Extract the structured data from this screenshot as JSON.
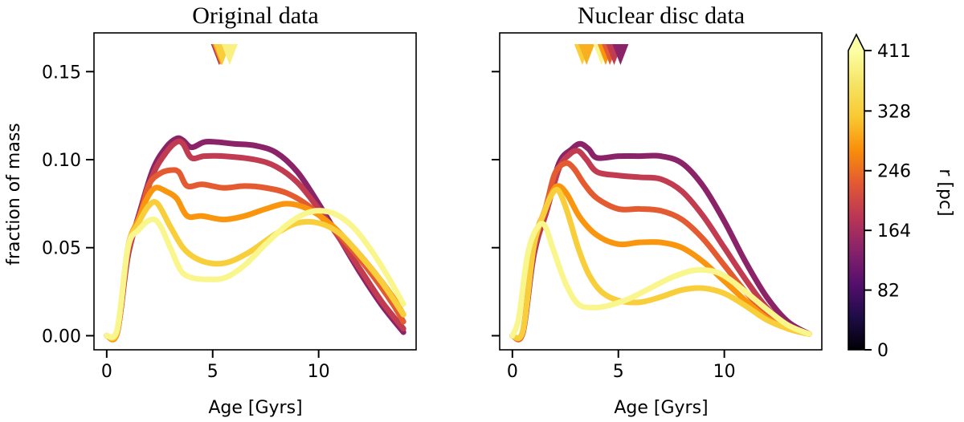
{
  "colors": {
    "background": "#ffffff",
    "axis": "#000000",
    "colormap": [
      "#000004",
      "#1f0c48",
      "#550f6d",
      "#88226a",
      "#ba3655",
      "#e35933",
      "#f98e09",
      "#f9c932",
      "#f5e464",
      "#fcffa4"
    ]
  },
  "chart_data": [
    {
      "type": "line",
      "title": "Original data",
      "xlabel": "Age [Gyrs]",
      "ylabel": "fraction of mass",
      "xlim": [
        -0.6,
        14.6
      ],
      "ylim": [
        -0.008,
        0.172
      ],
      "xticks": [
        0,
        5,
        10
      ],
      "xtick_labels": [
        "0",
        "5",
        "10"
      ],
      "yticks": [
        0.0,
        0.05,
        0.1,
        0.15
      ],
      "ytick_labels": [
        "0.00",
        "0.05",
        "0.10",
        "0.15"
      ],
      "markers": [
        {
          "x": 5.3,
          "r": 164
        },
        {
          "x": 5.35,
          "r": 246
        },
        {
          "x": 5.4,
          "r": 300
        },
        {
          "x": 5.45,
          "r": 328
        },
        {
          "x": 5.8,
          "r": 385
        }
      ],
      "series": [
        {
          "r": 140,
          "points": [
            [
              0,
              0
            ],
            [
              0.5,
              0.002
            ],
            [
              1,
              0.045
            ],
            [
              1.6,
              0.072
            ],
            [
              2.2,
              0.095
            ],
            [
              2.8,
              0.107
            ],
            [
              3.3,
              0.112
            ],
            [
              3.6,
              0.111
            ],
            [
              4,
              0.107
            ],
            [
              4.6,
              0.11
            ],
            [
              5.2,
              0.11
            ],
            [
              6,
              0.109
            ],
            [
              7,
              0.108
            ],
            [
              8,
              0.104
            ],
            [
              9,
              0.093
            ],
            [
              10,
              0.075
            ],
            [
              11,
              0.055
            ],
            [
              12,
              0.035
            ],
            [
              13,
              0.017
            ],
            [
              14,
              0.002
            ]
          ]
        },
        {
          "r": 190,
          "points": [
            [
              0,
              0
            ],
            [
              0.5,
              0.002
            ],
            [
              1,
              0.046
            ],
            [
              1.6,
              0.07
            ],
            [
              2.2,
              0.092
            ],
            [
              2.8,
              0.104
            ],
            [
              3.3,
              0.11
            ],
            [
              3.6,
              0.109
            ],
            [
              4,
              0.101
            ],
            [
              4.6,
              0.102
            ],
            [
              5.5,
              0.102
            ],
            [
              7,
              0.1
            ],
            [
              8,
              0.096
            ],
            [
              9,
              0.087
            ],
            [
              10,
              0.072
            ],
            [
              11,
              0.055
            ],
            [
              12,
              0.037
            ],
            [
              13,
              0.019
            ],
            [
              14,
              0.004
            ]
          ]
        },
        {
          "r": 230,
          "points": [
            [
              0,
              0
            ],
            [
              0.5,
              0.002
            ],
            [
              1,
              0.048
            ],
            [
              1.6,
              0.07
            ],
            [
              2,
              0.086
            ],
            [
              2.5,
              0.092
            ],
            [
              3,
              0.094
            ],
            [
              3.4,
              0.093
            ],
            [
              3.8,
              0.085
            ],
            [
              4.5,
              0.086
            ],
            [
              5.5,
              0.084
            ],
            [
              6.5,
              0.085
            ],
            [
              7.5,
              0.084
            ],
            [
              8.5,
              0.081
            ],
            [
              9.5,
              0.074
            ],
            [
              10.5,
              0.063
            ],
            [
              11.5,
              0.05
            ],
            [
              12.5,
              0.035
            ],
            [
              13.5,
              0.018
            ],
            [
              14,
              0.008
            ]
          ]
        },
        {
          "r": 280,
          "points": [
            [
              0,
              0
            ],
            [
              0.5,
              0.002
            ],
            [
              1,
              0.05
            ],
            [
              1.5,
              0.066
            ],
            [
              1.9,
              0.078
            ],
            [
              2.3,
              0.084
            ],
            [
              2.8,
              0.082
            ],
            [
              3.3,
              0.078
            ],
            [
              3.8,
              0.068
            ],
            [
              4.5,
              0.068
            ],
            [
              5.5,
              0.066
            ],
            [
              6.5,
              0.068
            ],
            [
              7.5,
              0.072
            ],
            [
              8.5,
              0.075
            ],
            [
              9.5,
              0.072
            ],
            [
              10.5,
              0.064
            ],
            [
              11.5,
              0.052
            ],
            [
              12.5,
              0.038
            ],
            [
              13.5,
              0.022
            ],
            [
              14,
              0.012
            ]
          ]
        },
        {
          "r": 328,
          "points": [
            [
              0,
              0
            ],
            [
              0.5,
              0.003
            ],
            [
              1,
              0.05
            ],
            [
              1.5,
              0.064
            ],
            [
              2,
              0.074
            ],
            [
              2.4,
              0.075
            ],
            [
              3,
              0.062
            ],
            [
              3.6,
              0.05
            ],
            [
              4.2,
              0.044
            ],
            [
              5,
              0.041
            ],
            [
              5.8,
              0.042
            ],
            [
              6.8,
              0.048
            ],
            [
              8,
              0.058
            ],
            [
              9,
              0.064
            ],
            [
              10,
              0.064
            ],
            [
              11,
              0.058
            ],
            [
              12,
              0.045
            ],
            [
              13,
              0.03
            ],
            [
              14,
              0.012
            ]
          ]
        },
        {
          "r": 395,
          "points": [
            [
              0,
              0
            ],
            [
              0.5,
              0.004
            ],
            [
              1,
              0.05
            ],
            [
              1.5,
              0.06
            ],
            [
              2.1,
              0.066
            ],
            [
              2.5,
              0.063
            ],
            [
              3,
              0.05
            ],
            [
              3.5,
              0.037
            ],
            [
              4,
              0.033
            ],
            [
              4.8,
              0.032
            ],
            [
              5.6,
              0.033
            ],
            [
              6.5,
              0.04
            ],
            [
              7.5,
              0.052
            ],
            [
              8.5,
              0.063
            ],
            [
              9.3,
              0.069
            ],
            [
              10,
              0.071
            ],
            [
              10.8,
              0.069
            ],
            [
              11.6,
              0.062
            ],
            [
              12.4,
              0.05
            ],
            [
              13.2,
              0.035
            ],
            [
              14,
              0.018
            ]
          ]
        }
      ]
    },
    {
      "type": "line",
      "title": "Nuclear disc data",
      "xlabel": "Age [Gyrs]",
      "ylabel": "",
      "xlim": [
        -0.6,
        14.6
      ],
      "ylim": [
        -0.008,
        0.172
      ],
      "xticks": [
        0,
        5,
        10
      ],
      "xtick_labels": [
        "0",
        "5",
        "10"
      ],
      "yticks": [
        0.0,
        0.05,
        0.1,
        0.15
      ],
      "ytick_labels": [
        "",
        "",
        "",
        ""
      ],
      "markers": [
        {
          "x": 3.3,
          "r": 328
        },
        {
          "x": 3.5,
          "r": 300
        },
        {
          "x": 4.2,
          "r": 395
        },
        {
          "x": 4.4,
          "r": 280
        },
        {
          "x": 4.6,
          "r": 230
        },
        {
          "x": 4.8,
          "r": 190
        },
        {
          "x": 5.1,
          "r": 140
        }
      ],
      "series": [
        {
          "r": 140,
          "points": [
            [
              0,
              0
            ],
            [
              0.5,
              0.002
            ],
            [
              1,
              0.045
            ],
            [
              1.6,
              0.072
            ],
            [
              2.2,
              0.098
            ],
            [
              2.8,
              0.106
            ],
            [
              3.2,
              0.109
            ],
            [
              3.6,
              0.106
            ],
            [
              4,
              0.101
            ],
            [
              5,
              0.102
            ],
            [
              6,
              0.102
            ],
            [
              7,
              0.102
            ],
            [
              8,
              0.098
            ],
            [
              9,
              0.085
            ],
            [
              10,
              0.065
            ],
            [
              11,
              0.042
            ],
            [
              12,
              0.022
            ],
            [
              13,
              0.008
            ],
            [
              14,
              0.001
            ]
          ]
        },
        {
          "r": 190,
          "points": [
            [
              0,
              0
            ],
            [
              0.5,
              0.002
            ],
            [
              1,
              0.046
            ],
            [
              1.6,
              0.07
            ],
            [
              2.2,
              0.095
            ],
            [
              2.7,
              0.103
            ],
            [
              3.1,
              0.105
            ],
            [
              3.5,
              0.1
            ],
            [
              4,
              0.093
            ],
            [
              5,
              0.091
            ],
            [
              6,
              0.09
            ],
            [
              7,
              0.089
            ],
            [
              8,
              0.082
            ],
            [
              9,
              0.068
            ],
            [
              10,
              0.05
            ],
            [
              11,
              0.032
            ],
            [
              12,
              0.016
            ],
            [
              13,
              0.006
            ],
            [
              14,
              0.001
            ]
          ]
        },
        {
          "r": 230,
          "points": [
            [
              0,
              0
            ],
            [
              0.5,
              0.002
            ],
            [
              1,
              0.05
            ],
            [
              1.6,
              0.074
            ],
            [
              2,
              0.092
            ],
            [
              2.5,
              0.098
            ],
            [
              2.9,
              0.095
            ],
            [
              3.4,
              0.086
            ],
            [
              4,
              0.078
            ],
            [
              5,
              0.072
            ],
            [
              6,
              0.072
            ],
            [
              7,
              0.071
            ],
            [
              8,
              0.066
            ],
            [
              9,
              0.055
            ],
            [
              10,
              0.04
            ],
            [
              11,
              0.025
            ],
            [
              12,
              0.013
            ],
            [
              13,
              0.005
            ],
            [
              14,
              0.001
            ]
          ]
        },
        {
          "r": 280,
          "points": [
            [
              0,
              0
            ],
            [
              0.5,
              0.003
            ],
            [
              1,
              0.052
            ],
            [
              1.5,
              0.07
            ],
            [
              1.9,
              0.082
            ],
            [
              2.2,
              0.085
            ],
            [
              2.6,
              0.08
            ],
            [
              3.2,
              0.067
            ],
            [
              4,
              0.057
            ],
            [
              5,
              0.052
            ],
            [
              6,
              0.053
            ],
            [
              7,
              0.053
            ],
            [
              8,
              0.05
            ],
            [
              9,
              0.042
            ],
            [
              10,
              0.031
            ],
            [
              11,
              0.02
            ],
            [
              12,
              0.01
            ],
            [
              13,
              0.004
            ],
            [
              14,
              0.001
            ]
          ]
        },
        {
          "r": 328,
          "points": [
            [
              0,
              0
            ],
            [
              0.5,
              0.003
            ],
            [
              1,
              0.05
            ],
            [
              1.5,
              0.07
            ],
            [
              1.9,
              0.081
            ],
            [
              2.2,
              0.082
            ],
            [
              2.6,
              0.07
            ],
            [
              3.1,
              0.05
            ],
            [
              3.6,
              0.035
            ],
            [
              4.2,
              0.025
            ],
            [
              5,
              0.02
            ],
            [
              6,
              0.019
            ],
            [
              7,
              0.022
            ],
            [
              8,
              0.026
            ],
            [
              9,
              0.027
            ],
            [
              10,
              0.024
            ],
            [
              11,
              0.017
            ],
            [
              12,
              0.009
            ],
            [
              13,
              0.004
            ],
            [
              14,
              0.001
            ]
          ]
        },
        {
          "r": 395,
          "points": [
            [
              0,
              0
            ],
            [
              0.3,
              0.01
            ],
            [
              0.7,
              0.045
            ],
            [
              1.1,
              0.06
            ],
            [
              1.5,
              0.063
            ],
            [
              1.9,
              0.05
            ],
            [
              2.5,
              0.03
            ],
            [
              3.1,
              0.018
            ],
            [
              3.8,
              0.016
            ],
            [
              4.5,
              0.017
            ],
            [
              5.5,
              0.021
            ],
            [
              6.5,
              0.027
            ],
            [
              7.5,
              0.033
            ],
            [
              8.5,
              0.037
            ],
            [
              9.3,
              0.037
            ],
            [
              10,
              0.034
            ],
            [
              11,
              0.025
            ],
            [
              12,
              0.015
            ],
            [
              13,
              0.006
            ],
            [
              14,
              0.001
            ]
          ]
        }
      ]
    },
    {
      "type": "colorbar",
      "label": "r [pc]",
      "range": [
        0,
        411
      ],
      "ticks": [
        0,
        82,
        164,
        246,
        328,
        411
      ],
      "tick_labels": [
        "0",
        "82",
        "164",
        "246",
        "328",
        "411"
      ],
      "extend": "max"
    }
  ]
}
